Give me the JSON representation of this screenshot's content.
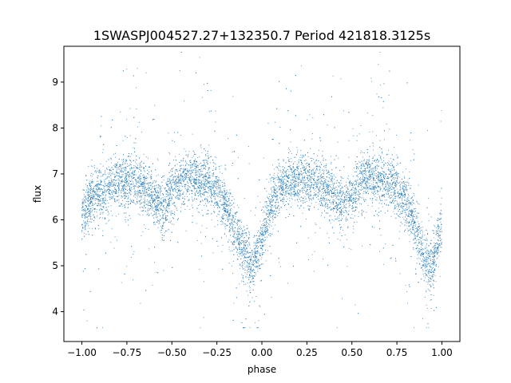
{
  "chart_data": {
    "type": "scatter",
    "title": "1SWASPJ004527.27+132350.7 Period 421818.3125s",
    "xlabel": "phase",
    "ylabel": "flux",
    "xlim": [
      -1.1,
      1.1
    ],
    "ylim": [
      3.35,
      9.78
    ],
    "xticks": [
      "−1.00",
      "−0.75",
      "−0.50",
      "−0.25",
      "0.00",
      "0.25",
      "0.50",
      "0.75",
      "1.00"
    ],
    "xtick_values": [
      -1.0,
      -0.75,
      -0.5,
      -0.25,
      0.0,
      0.25,
      0.5,
      0.75,
      1.0
    ],
    "yticks": [
      "4",
      "5",
      "6",
      "7",
      "8",
      "9"
    ],
    "ytick_values": [
      4,
      5,
      6,
      7,
      8,
      9
    ],
    "point_color": "#1f77b4",
    "grid": false,
    "series": [
      {
        "x": [
          -1.0,
          -0.95,
          -0.9,
          -0.85,
          -0.8,
          -0.75,
          -0.7,
          -0.65,
          -0.6,
          -0.55,
          -0.5,
          -0.45,
          -0.4,
          -0.35,
          -0.3,
          -0.25,
          -0.2,
          -0.15,
          -0.1,
          -0.05,
          0.0,
          0.05,
          0.1,
          0.15,
          0.2,
          0.25,
          0.3,
          0.35,
          0.4,
          0.45,
          0.5,
          0.55,
          0.6,
          0.65,
          0.7,
          0.75,
          0.8,
          0.85,
          0.9,
          0.95,
          1.0
        ],
        "y": [
          6.0,
          6.5,
          6.6,
          6.7,
          6.8,
          6.85,
          6.85,
          6.7,
          6.5,
          6.2,
          6.6,
          6.85,
          6.95,
          6.9,
          6.8,
          6.6,
          6.3,
          5.8,
          5.3,
          4.95,
          5.5,
          6.3,
          6.7,
          6.8,
          6.85,
          6.9,
          6.85,
          6.7,
          6.55,
          6.3,
          6.5,
          6.8,
          6.9,
          6.85,
          6.8,
          6.65,
          6.4,
          5.9,
          5.2,
          5.0,
          6.0
        ]
      }
    ]
  }
}
